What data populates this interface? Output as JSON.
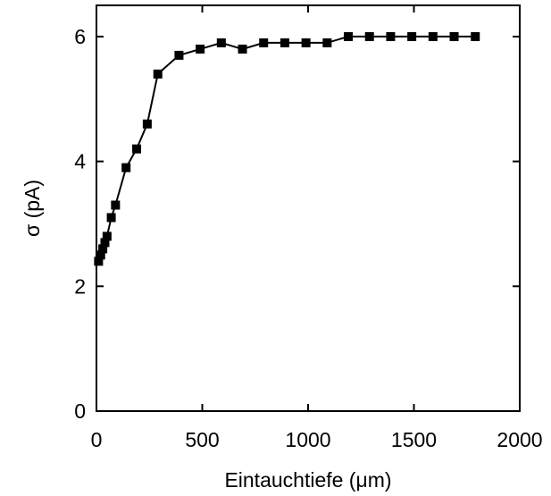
{
  "chart_data": {
    "type": "line",
    "title": "",
    "xlabel": "Eintauchtiefe (μm)",
    "ylabel": "σ (pA)",
    "xlim": [
      0,
      2000
    ],
    "ylim": [
      0,
      6.5
    ],
    "xticks": [
      0,
      500,
      1000,
      1500,
      2000
    ],
    "xtick_labels": [
      "0",
      "500",
      "1000",
      "1500",
      "2000"
    ],
    "yticks": [
      0,
      2,
      4,
      6
    ],
    "ytick_labels": [
      "0",
      "2",
      "4",
      "6"
    ],
    "grid": false,
    "legend": "none",
    "marker": "square",
    "color": "#000000",
    "series": [
      {
        "x": [
          10,
          20,
          30,
          40,
          50,
          70,
          90,
          140,
          190,
          240,
          290,
          390,
          490,
          590,
          690,
          790,
          890,
          990,
          1090,
          1190,
          1290,
          1390,
          1490,
          1590,
          1690,
          1790
        ],
        "y": [
          2.4,
          2.5,
          2.6,
          2.7,
          2.8,
          3.1,
          3.3,
          3.9,
          4.2,
          4.6,
          5.4,
          5.7,
          5.8,
          5.9,
          5.8,
          5.9,
          5.9,
          5.9,
          5.9,
          6.0,
          6.0,
          6.0,
          6.0,
          6.0,
          6.0,
          6.0
        ]
      }
    ]
  }
}
